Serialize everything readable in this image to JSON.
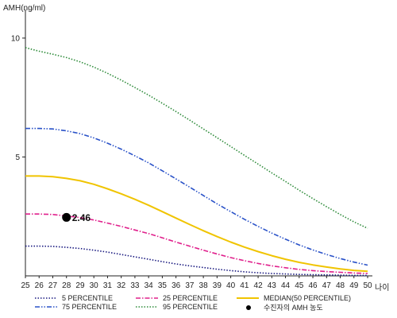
{
  "chart_data": {
    "type": "line",
    "ylabel": "AMH(ng/ml)",
    "xlabel": "나이",
    "xlim": [
      25,
      50
    ],
    "ylim": [
      0,
      11
    ],
    "x_ticks": [
      25,
      26,
      27,
      28,
      29,
      30,
      31,
      32,
      33,
      34,
      35,
      36,
      37,
      38,
      39,
      40,
      41,
      42,
      43,
      44,
      45,
      46,
      47,
      48,
      49,
      50
    ],
    "y_ticks": [
      5,
      10
    ],
    "grid": false,
    "legend_position": "bottom",
    "x": [
      25,
      26,
      27,
      28,
      29,
      30,
      31,
      32,
      33,
      34,
      35,
      36,
      37,
      38,
      39,
      40,
      41,
      42,
      43,
      44,
      45,
      46,
      47,
      48,
      49,
      50
    ],
    "series": [
      {
        "name": "5 PERCENTILE",
        "color": "#1a1a80",
        "dash": "dotted",
        "values": [
          1.25,
          1.25,
          1.24,
          1.2,
          1.15,
          1.08,
          1.0,
          0.9,
          0.8,
          0.7,
          0.6,
          0.5,
          0.42,
          0.35,
          0.28,
          0.22,
          0.17,
          0.13,
          0.1,
          0.08,
          0.06,
          0.05,
          0.04,
          0.03,
          0.02,
          0.02
        ]
      },
      {
        "name": "25 PERCENTILE",
        "color": "#e0208c",
        "dash": "dashdot",
        "values": [
          2.6,
          2.6,
          2.58,
          2.52,
          2.45,
          2.35,
          2.22,
          2.08,
          1.93,
          1.78,
          1.6,
          1.42,
          1.25,
          1.08,
          0.92,
          0.77,
          0.64,
          0.52,
          0.42,
          0.34,
          0.27,
          0.22,
          0.18,
          0.15,
          0.12,
          0.1
        ]
      },
      {
        "name": "MEDIAN(50 PERCENTILE)",
        "color": "#f0c400",
        "dash": "solid",
        "values": [
          4.2,
          4.2,
          4.17,
          4.1,
          4.0,
          3.85,
          3.66,
          3.45,
          3.22,
          2.97,
          2.7,
          2.43,
          2.16,
          1.9,
          1.65,
          1.42,
          1.21,
          1.02,
          0.85,
          0.7,
          0.57,
          0.46,
          0.37,
          0.29,
          0.23,
          0.19
        ]
      },
      {
        "name": "75 PERCENTILE",
        "color": "#2a52c8",
        "dash": "dashdotdot",
        "values": [
          6.2,
          6.2,
          6.18,
          6.1,
          5.98,
          5.8,
          5.58,
          5.33,
          5.05,
          4.75,
          4.42,
          4.08,
          3.73,
          3.38,
          3.03,
          2.7,
          2.38,
          2.08,
          1.8,
          1.54,
          1.3,
          1.09,
          0.9,
          0.73,
          0.58,
          0.45
        ]
      },
      {
        "name": "95 PERCENTILE",
        "color": "#2e8b3a",
        "dash": "dotted",
        "values": [
          9.6,
          9.45,
          9.32,
          9.18,
          9.0,
          8.78,
          8.52,
          8.23,
          7.92,
          7.6,
          7.26,
          6.91,
          6.55,
          6.18,
          5.81,
          5.44,
          5.07,
          4.7,
          4.33,
          3.97,
          3.6,
          3.25,
          2.91,
          2.58,
          2.27,
          2.0
        ]
      }
    ],
    "highlight_point": {
      "name": "수진자의 AMH 농도",
      "x": 28,
      "y": 2.46,
      "label": "2.46",
      "color": "#000000"
    }
  }
}
